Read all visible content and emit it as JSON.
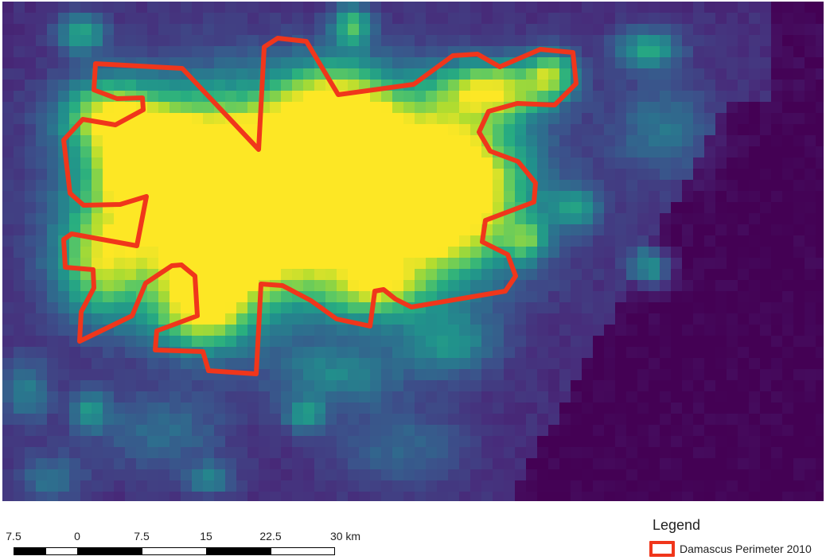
{
  "map": {
    "raster_colormap": [
      "#440154",
      "#472d7b",
      "#3b528b",
      "#2c728e",
      "#21918c",
      "#28ae80",
      "#5ec962",
      "#addc30",
      "#fde725"
    ],
    "perimeter_color": "#f0361b",
    "perimeter_icon": "polygon-outline-icon"
  },
  "scalebar": {
    "labels": [
      "7.5",
      "0",
      "7.5",
      "15",
      "22.5",
      "30 km"
    ]
  },
  "legend": {
    "title": "Legend",
    "items": [
      {
        "label": "Damascus Perimeter 2010",
        "color": "#f0361b"
      }
    ]
  }
}
